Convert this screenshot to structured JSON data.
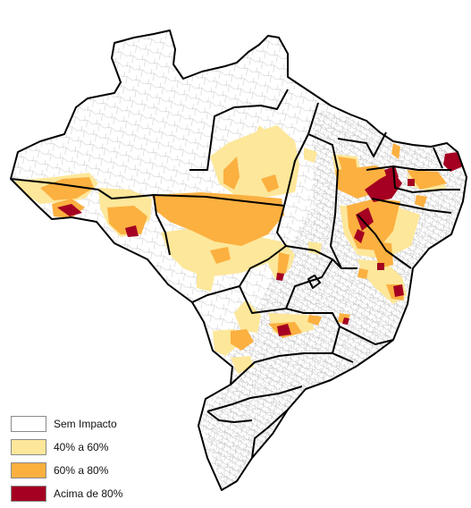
{
  "map": {
    "colors": {
      "background": "#ffffff",
      "no_impact_fill": "#ffffff",
      "municipal_border": "#b9b9b9",
      "state_border": "#000000",
      "class_40_60": "#fde79a",
      "class_60_80": "#fbb040",
      "class_above_80": "#a50021"
    }
  },
  "legend": {
    "items": [
      {
        "label": "Sem Impacto",
        "color": "#ffffff"
      },
      {
        "label": "40% a 60%",
        "color": "#fde79a"
      },
      {
        "label": "60% a 80%",
        "color": "#fbb040"
      },
      {
        "label": "Acima de 80%",
        "color": "#a50021"
      }
    ]
  }
}
